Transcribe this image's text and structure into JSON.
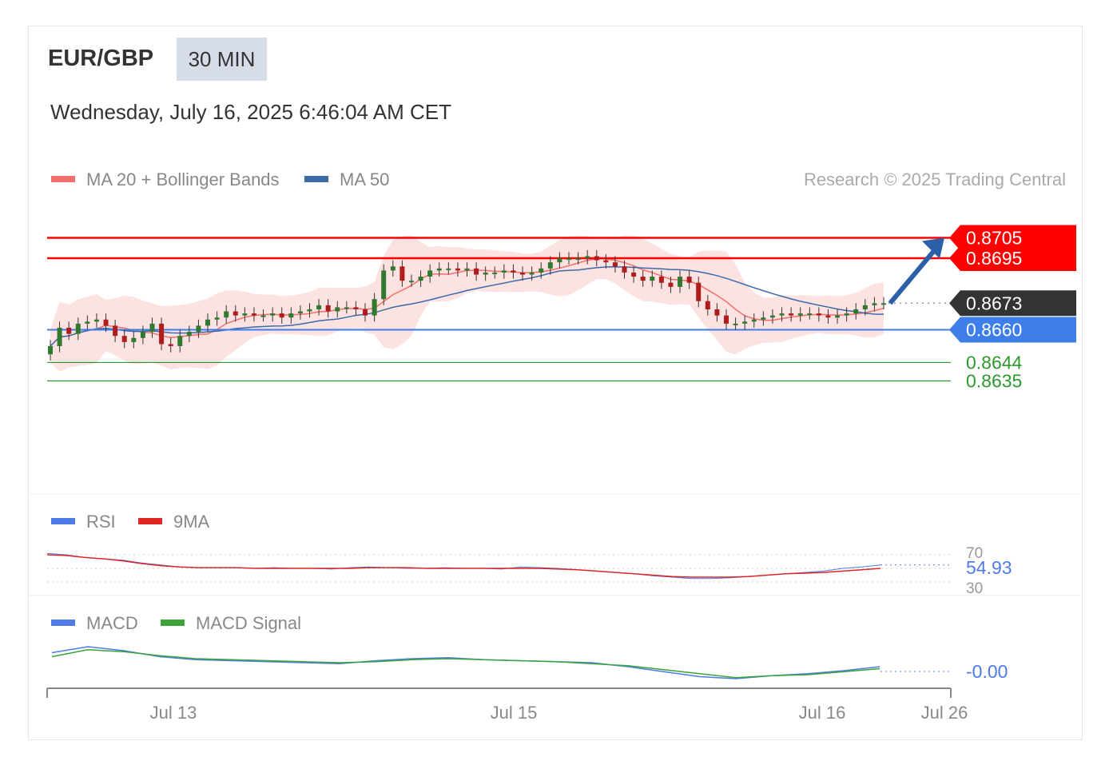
{
  "header": {
    "pair": "EUR/GBP",
    "timeframe": "30 MIN",
    "date": "Wednesday, July 16, 2025 6:46:04 AM CET"
  },
  "legend": {
    "ma20_label": "MA 20 + Bollinger Bands",
    "ma50_label": "MA 50",
    "copyright": "Research © 2025 Trading Central"
  },
  "rsi_legend": {
    "rsi_label": "RSI",
    "ma_label": "9MA"
  },
  "macd_legend": {
    "macd_label": "MACD",
    "signal_label": "MACD Signal"
  },
  "colors": {
    "resistance": "#ff0000",
    "support_pivot": "#3d7eea",
    "support": "#2e9a2e",
    "last_price": "#333333",
    "band_fill": "#fde2e2",
    "ma20": "#f2706b",
    "ma50": "#3a6aa8",
    "candle_up": "#2f7a2f",
    "candle_down": "#b01c1c",
    "rsi": "#4f7be6",
    "rsi_ma": "#e02525",
    "macd": "#4f7be6",
    "macd_signal": "#3aa33a",
    "arrow": "#2b5fa8"
  },
  "chart_data": {
    "type": "line",
    "title": "EUR/GBP",
    "timeframe": "30 MIN",
    "x_ticks": [
      "Jul 13",
      "Jul 15",
      "Jul 16",
      "Jul 26"
    ],
    "ylim": [
      0.8582,
      0.8722
    ],
    "levels": [
      {
        "label": "0.8705",
        "value": 0.8705,
        "kind": "resistance"
      },
      {
        "label": "0.8695",
        "value": 0.8695,
        "kind": "resistance"
      },
      {
        "label": "0.8673",
        "value": 0.8673,
        "kind": "last"
      },
      {
        "label": "0.8660",
        "value": 0.866,
        "kind": "pivot"
      },
      {
        "label": "0.8644",
        "value": 0.8644,
        "kind": "support"
      },
      {
        "label": "0.8635",
        "value": 0.8635,
        "kind": "support"
      }
    ],
    "price_path": [
      0.8652,
      0.8661,
      0.8658,
      0.8663,
      0.8664,
      0.8665,
      0.8662,
      0.8657,
      0.8654,
      0.8656,
      0.8659,
      0.8663,
      0.8653,
      0.8652,
      0.8657,
      0.8659,
      0.8662,
      0.8665,
      0.8666,
      0.8669,
      0.8667,
      0.8668,
      0.8667,
      0.8667,
      0.8668,
      0.8666,
      0.8668,
      0.8669,
      0.867,
      0.8672,
      0.8669,
      0.8671,
      0.8671,
      0.867,
      0.8667,
      0.8675,
      0.8689,
      0.8691,
      0.8684,
      0.8684,
      0.8686,
      0.8689,
      0.869,
      0.869,
      0.8689,
      0.869,
      0.8687,
      0.8688,
      0.8688,
      0.8689,
      0.8688,
      0.8687,
      0.8688,
      0.869,
      0.8693,
      0.8695,
      0.8695,
      0.8695,
      0.8696,
      0.8694,
      0.8693,
      0.8691,
      0.8688,
      0.8686,
      0.8684,
      0.8686,
      0.8683,
      0.8681,
      0.8686,
      0.8683,
      0.8674,
      0.867,
      0.8667,
      0.8663,
      0.8663,
      0.8664,
      0.8665,
      0.8666,
      0.8667,
      0.8668,
      0.8667,
      0.8668,
      0.8668,
      0.8667,
      0.8666,
      0.8667,
      0.8668,
      0.867,
      0.8672,
      0.8673,
      0.8673
    ],
    "forecast_target": 0.8705,
    "series": [
      {
        "name": "MA 20 + Bollinger Bands"
      },
      {
        "name": "MA 50"
      }
    ],
    "rsi": {
      "value": "54.93",
      "levels": [
        "70",
        "30"
      ],
      "rsi_series": [
        72,
        70,
        66,
        64,
        62,
        58,
        55,
        52,
        51,
        51,
        51,
        50,
        51,
        50,
        50,
        49,
        51,
        52,
        51,
        50,
        50,
        51,
        50,
        50,
        49,
        52,
        51,
        50,
        48,
        46,
        44,
        42,
        39,
        37,
        35,
        35,
        36,
        38,
        40,
        42,
        44,
        46,
        50,
        52,
        55
      ],
      "ma_series": [
        70,
        69,
        66,
        64,
        61,
        57,
        54,
        52,
        51,
        51,
        51,
        50,
        50,
        50,
        50,
        50,
        50,
        51,
        51,
        51,
        50,
        50,
        50,
        50,
        50,
        50,
        50,
        49,
        48,
        46,
        44,
        42,
        40,
        38,
        37,
        37,
        37,
        38,
        40,
        42,
        43,
        44,
        46,
        48,
        50
      ]
    },
    "macd": {
      "value": "-0.00",
      "macd_series": [
        0.001,
        0.0016,
        0.0012,
        0.0006,
        0.0003,
        0.0002,
        0.0001,
        0.0,
        -0.0001,
        0.0002,
        0.0004,
        0.0005,
        0.0003,
        0.0002,
        0.0001,
        0.0,
        -0.0004,
        -0.0009,
        -0.0014,
        -0.0016,
        -0.0013,
        -0.0011,
        -0.0008,
        -0.0004
      ],
      "signal_series": [
        0.0006,
        0.0013,
        0.0011,
        0.0007,
        0.0004,
        0.0003,
        0.0002,
        0.0001,
        0.0,
        0.0001,
        0.0003,
        0.0004,
        0.0003,
        0.0002,
        0.0001,
        -0.0001,
        -0.0003,
        -0.0007,
        -0.0011,
        -0.0015,
        -0.0013,
        -0.0012,
        -0.0009,
        -0.0006
      ]
    }
  }
}
